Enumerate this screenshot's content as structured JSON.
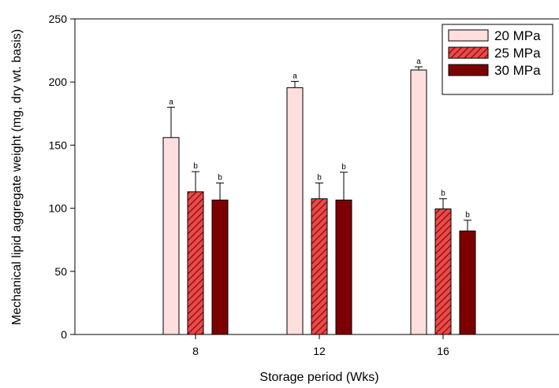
{
  "chart_data": {
    "type": "bar",
    "title": "",
    "xlabel": "Storage period (Wks)",
    "ylabel": "Mechanical lipid aggregate weight (mg, dry wt. basis)",
    "categories": [
      "8",
      "12",
      "16"
    ],
    "ylim": [
      0,
      250
    ],
    "yticks": [
      "0",
      "50",
      "100",
      "150",
      "200",
      "250"
    ],
    "grid": false,
    "legend_position": "top-right",
    "series": [
      {
        "name": "20 MPa",
        "color": "#ffdede",
        "pattern": "solid",
        "values": [
          156,
          195.5,
          209.5
        ],
        "errors": [
          24,
          5,
          2.5
        ],
        "labels": [
          "a",
          "a",
          "a"
        ]
      },
      {
        "name": "25 MPa",
        "color": "#e84a4a",
        "pattern": "hatched",
        "values": [
          113,
          107.5,
          99.5
        ],
        "errors": [
          16,
          12.5,
          8
        ],
        "labels": [
          "b",
          "b",
          "b"
        ]
      },
      {
        "name": "30 MPa",
        "color": "#7d0000",
        "pattern": "solid",
        "values": [
          106.5,
          106.5,
          82
        ],
        "errors": [
          13.5,
          22,
          8.5
        ],
        "labels": [
          "b",
          "b",
          "b"
        ]
      }
    ]
  }
}
